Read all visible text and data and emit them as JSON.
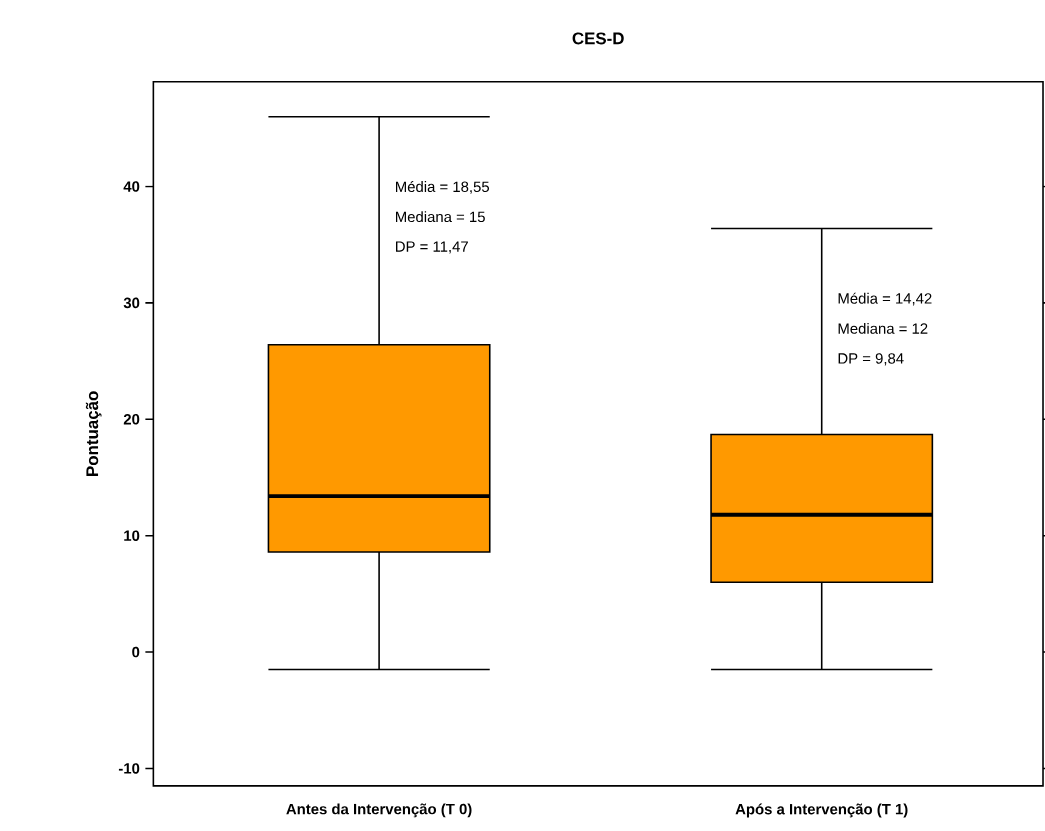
{
  "chart_data": {
    "type": "box",
    "title": "CES-D",
    "ylabel": "Pontuação",
    "categories": [
      "Antes da Intervenção (T 0)",
      "Após a Intervenção (T 1)"
    ],
    "series": [
      {
        "color": "#ff9900",
        "boxes": [
          {
            "low": -1.5,
            "q1": 8.6,
            "median": 13.4,
            "q3": 26.4,
            "high": 46
          },
          {
            "low": -1.5,
            "q1": 6.0,
            "median": 11.8,
            "q3": 18.7,
            "high": 36.4
          }
        ]
      }
    ],
    "ylim": [
      -11.5,
      49
    ],
    "yticks": [
      -10,
      0,
      10,
      20,
      30,
      40
    ],
    "annotations": [
      "Média = 18,55",
      "Mediana = 15",
      "DP = 11,47",
      "Média = 14,42",
      "Mediana = 12",
      "DP = 9,84"
    ]
  }
}
